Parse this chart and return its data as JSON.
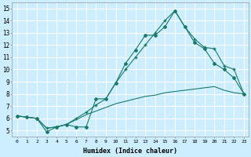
{
  "title": "",
  "xlabel": "Humidex (Indice chaleur)",
  "bg_color": "#cceeff",
  "grid_color": "#ffffff",
  "line_color": "#1a7a6a",
  "xlim": [
    -0.5,
    23.5
  ],
  "ylim": [
    4.5,
    15.5
  ],
  "xticks": [
    0,
    1,
    2,
    3,
    4,
    5,
    6,
    7,
    8,
    9,
    10,
    11,
    12,
    13,
    14,
    15,
    16,
    17,
    18,
    19,
    20,
    21,
    22,
    23
  ],
  "yticks": [
    5,
    6,
    7,
    8,
    9,
    10,
    11,
    12,
    13,
    14,
    15
  ],
  "line_flat_x": [
    0,
    1,
    2,
    3,
    4,
    5,
    6,
    7,
    8,
    9,
    10,
    11,
    12,
    13,
    14,
    15,
    16,
    17,
    18,
    19,
    20,
    21,
    22,
    23
  ],
  "line_flat_y": [
    6.2,
    6.1,
    6.0,
    5.2,
    5.3,
    5.5,
    5.9,
    6.3,
    6.6,
    6.9,
    7.2,
    7.4,
    7.6,
    7.8,
    7.9,
    8.1,
    8.2,
    8.3,
    8.4,
    8.5,
    8.6,
    8.3,
    8.1,
    8.0
  ],
  "line_mid_x": [
    0,
    1,
    2,
    3,
    4,
    5,
    6,
    7,
    8,
    9,
    10,
    11,
    12,
    13,
    14,
    15,
    16,
    17,
    18,
    19,
    20,
    21,
    22,
    23
  ],
  "line_mid_y": [
    6.2,
    6.1,
    6.0,
    5.2,
    5.3,
    5.5,
    6.0,
    6.5,
    7.1,
    7.6,
    8.9,
    10.0,
    11.0,
    12.0,
    13.0,
    14.0,
    14.8,
    13.5,
    12.5,
    11.8,
    11.7,
    10.3,
    10.0,
    8.0
  ],
  "line_top_x": [
    0,
    1,
    2,
    3,
    4,
    5,
    6,
    7,
    8,
    9,
    10,
    11,
    12,
    13,
    14,
    15,
    16,
    17,
    18,
    19,
    20,
    21,
    22,
    23
  ],
  "line_top_y": [
    6.2,
    6.1,
    6.0,
    4.9,
    5.3,
    5.5,
    5.3,
    5.3,
    7.6,
    7.6,
    8.9,
    10.5,
    11.6,
    12.8,
    12.8,
    13.5,
    14.8,
    13.5,
    12.2,
    11.7,
    10.5,
    10.0,
    9.3,
    8.0
  ]
}
